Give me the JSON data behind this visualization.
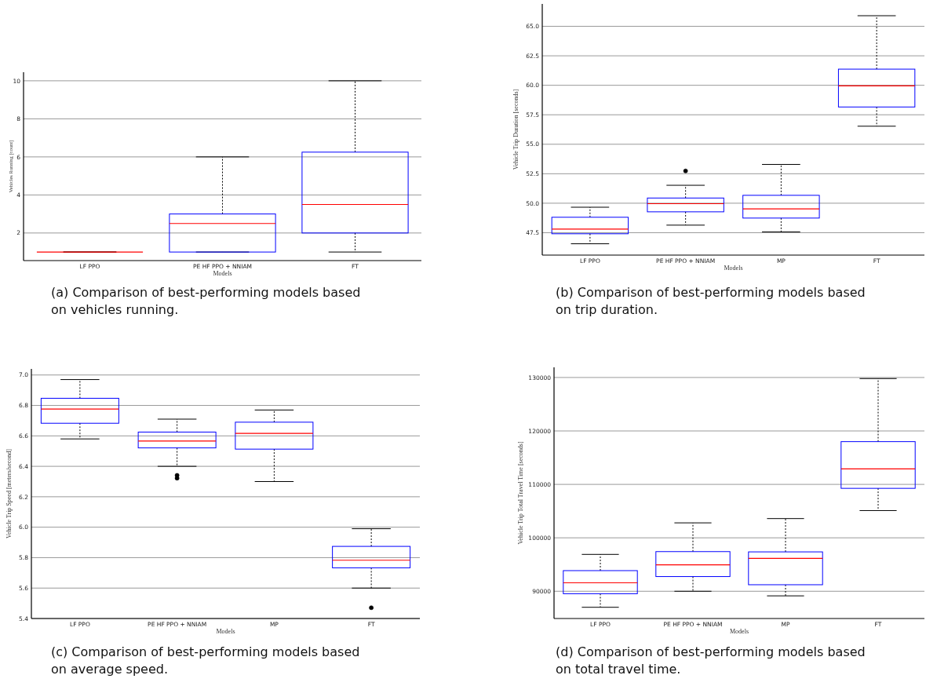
{
  "chart_data": [
    {
      "type": "box",
      "title": "(a) Comparison of best-performing models based on vehicles running.",
      "xlabel": "Models",
      "ylabel": "Vehicles Running [count]",
      "categories": [
        "LF PPO",
        "PE HF PPO + NNIAM",
        "FT"
      ],
      "boxes": [
        {
          "low": 1,
          "q1": 1,
          "median": 1,
          "q3": 1,
          "high": 1
        },
        {
          "low": 1,
          "q1": 1,
          "median": 2.5,
          "q3": 3,
          "high": 6
        },
        {
          "low": 1,
          "q1": 2,
          "median": 3.5,
          "q3": 6.25,
          "high": 10
        }
      ],
      "ylim": [
        0.55,
        10.45
      ],
      "yticks": [
        2,
        4,
        6,
        8,
        10
      ],
      "grid": "y"
    },
    {
      "type": "box",
      "title": "(b) Comparison of best-performing models based on trip duration.",
      "xlabel": "Models",
      "ylabel": "Vehicle Trip Duration [seconds]",
      "categories": [
        "LF PPO",
        "PE HF PPO + NNIAM",
        "MP",
        "FT"
      ],
      "boxes": [
        {
          "low": 46.56,
          "q1": 47.41,
          "median": 47.8,
          "q3": 48.81,
          "high": 49.66
        },
        {
          "low": 48.14,
          "q1": 49.27,
          "median": 49.96,
          "q3": 50.44,
          "high": 51.52,
          "outliers": [
            52.74
          ]
        },
        {
          "low": 47.57,
          "q1": 48.74,
          "median": 49.52,
          "q3": 50.67,
          "high": 53.29
        },
        {
          "low": 56.53,
          "q1": 58.16,
          "median": 59.95,
          "q3": 61.37,
          "high": 65.9
        }
      ],
      "ylim": [
        45.6,
        66.9
      ],
      "yticks": [
        47.5,
        {
          "value": 50,
          "label": "50.0"
        },
        52.5,
        {
          "value": 55,
          "label": "55.0"
        },
        57.5,
        {
          "value": 60,
          "label": "60.0"
        },
        62.5,
        {
          "value": 65,
          "label": "65.0"
        }
      ],
      "grid": "y"
    },
    {
      "type": "box",
      "title": "(c) Comparison of best-performing models based on average speed.",
      "xlabel": "Models",
      "ylabel": "Vehicle Trip Speed [meters/second]",
      "categories": [
        "LF PPO",
        "PE HF PPO + NNIAM",
        "MP",
        "FT"
      ],
      "boxes": [
        {
          "low": 6.58,
          "q1": 6.683,
          "median": 6.776,
          "q3": 6.847,
          "high": 6.97
        },
        {
          "low": 6.4,
          "q1": 6.521,
          "median": 6.566,
          "q3": 6.625,
          "high": 6.71,
          "outliers": [
            6.341,
            6.322
          ]
        },
        {
          "low": 6.3,
          "q1": 6.513,
          "median": 6.616,
          "q3": 6.69,
          "high": 6.77
        },
        {
          "low": 5.6,
          "q1": 5.733,
          "median": 5.783,
          "q3": 5.874,
          "high": 5.99,
          "outliers": [
            5.471
          ]
        }
      ],
      "ylim": [
        5.4,
        7.04
      ],
      "yticks": [
        5.4,
        5.6,
        5.8,
        {
          "value": 6,
          "label": "6.0"
        },
        6.2,
        6.4,
        6.6,
        6.8,
        {
          "value": 7,
          "label": "7.0"
        }
      ],
      "grid": "y"
    },
    {
      "type": "box",
      "title": "(d) Comparison of best-performing models based on total travel time.",
      "xlabel": "Models",
      "ylabel": "Vehicle Trip Total Travel Time [seconds]",
      "categories": [
        "LF PPO",
        "PE HF PPO + NNIAM",
        "MP",
        "FT"
      ],
      "boxes": [
        {
          "low": 87000,
          "q1": 89540,
          "median": 91580,
          "q3": 93860,
          "high": 96900
        },
        {
          "low": 90000,
          "q1": 92750,
          "median": 94930,
          "q3": 97420,
          "high": 102800
        },
        {
          "low": 89140,
          "q1": 91220,
          "median": 96150,
          "q3": 97370,
          "high": 103600
        },
        {
          "low": 105100,
          "q1": 109260,
          "median": 112900,
          "q3": 118000,
          "high": 129800
        }
      ],
      "ylim": [
        84900,
        131900
      ],
      "yticks": [
        90000,
        100000,
        110000,
        120000,
        130000
      ],
      "grid": "y"
    }
  ]
}
